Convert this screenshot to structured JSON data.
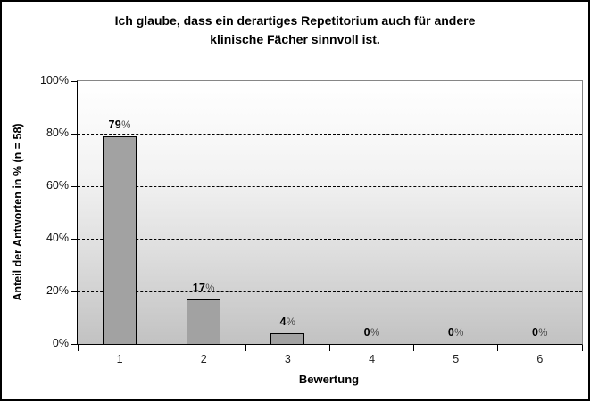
{
  "chart_data": {
    "type": "bar",
    "title": "Ich glaube, dass ein derartiges Repetitorium auch für andere klinische Fächer sinnvoll ist.",
    "title_lines": [
      "Ich glaube, dass ein derartiges Repetitorium auch für andere",
      "klinische Fächer sinnvoll ist."
    ],
    "categories": [
      "1",
      "2",
      "3",
      "4",
      "5",
      "6"
    ],
    "values": [
      79,
      17,
      4,
      0,
      0,
      0
    ],
    "bar_labels": [
      "79%",
      "17%",
      "4%",
      "0%",
      "0%",
      "0%"
    ],
    "xlabel": "Bewertung",
    "ylabel": "Anteil der Antworten in % (n = 58)",
    "ylim": [
      0,
      100
    ],
    "ytick_interval": 20,
    "ytick_labels": [
      "0%",
      "20%",
      "40%",
      "60%",
      "80%",
      "100%"
    ],
    "grid": "horizontal-dashed",
    "legend": "none",
    "colors": {
      "bar_fill": "#a2a2a2",
      "bar_border": "#000000",
      "plot_bg_top": "#ffffff",
      "plot_bg_bottom": "#c2c2c2",
      "plot_border": "#868686",
      "grid_color": "#000000",
      "text": "#000000"
    }
  }
}
